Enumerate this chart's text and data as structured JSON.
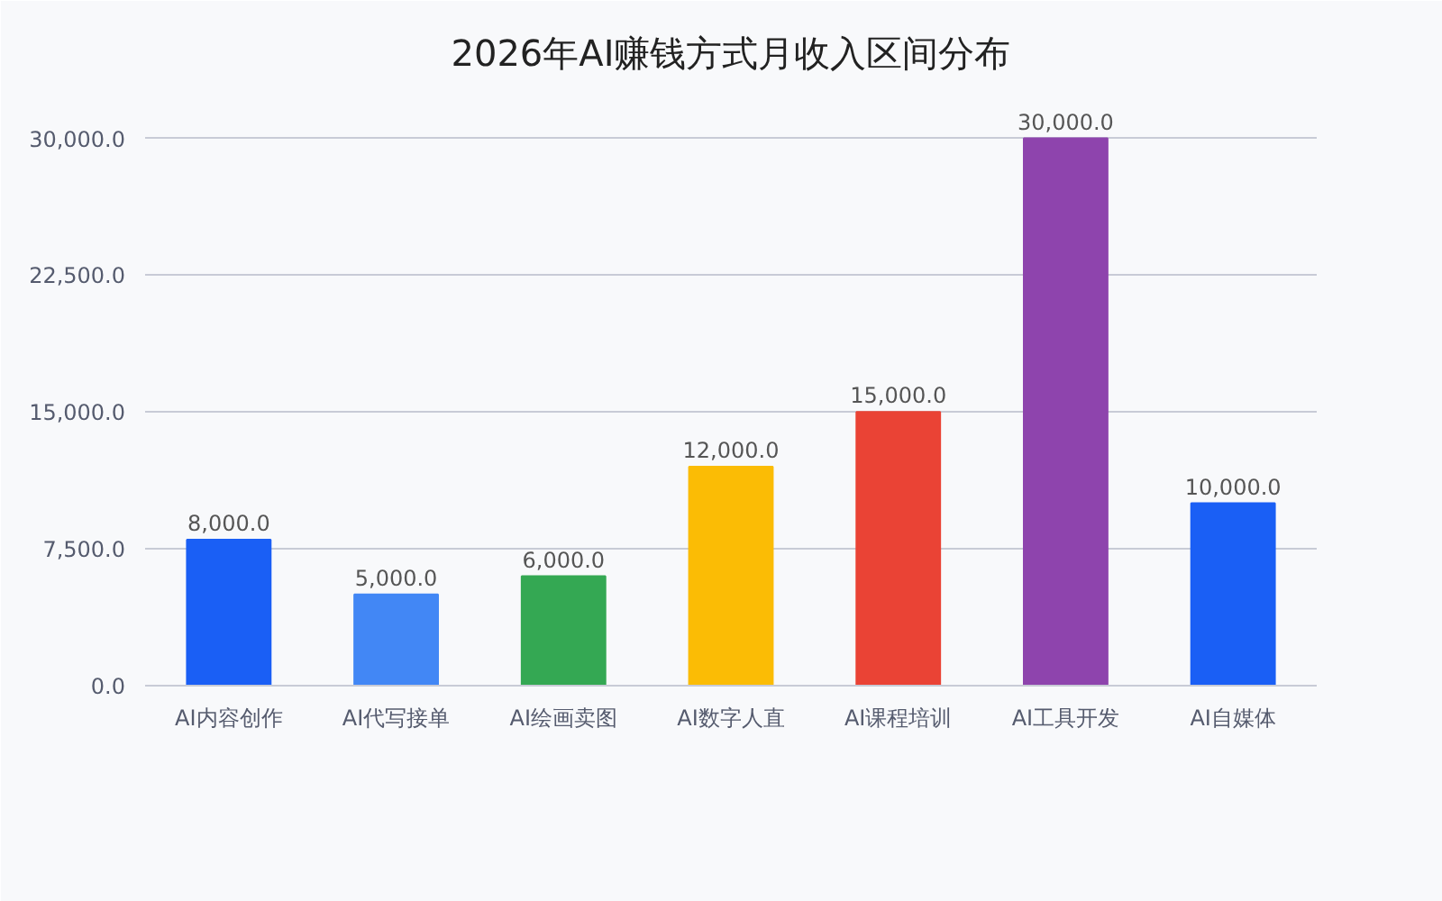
{
  "chart_data": {
    "type": "bar",
    "title": "2026年AI赚钱方式月收入区间分布",
    "categories": [
      "AI内容创作",
      "AI代写接单",
      "AI绘画卖图",
      "AI数字人直",
      "AI课程培训",
      "AI工具开发",
      "AI自媒体"
    ],
    "values": [
      8000,
      5000,
      6000,
      12000,
      15000,
      30000,
      10000
    ],
    "colors": [
      "#1a5ff5",
      "#4287f5",
      "#34a853",
      "#fbbc05",
      "#ea4335",
      "#8e44ad",
      "#1a5ff5"
    ],
    "ylim": [
      0,
      32000
    ],
    "yticks": [
      {
        "value": 0,
        "label": "0.0"
      },
      {
        "value": 7500,
        "label": "7,500.0"
      },
      {
        "value": 15000,
        "label": "15,000.0"
      },
      {
        "value": 22500,
        "label": "22,500.0"
      },
      {
        "value": 30000,
        "label": "30,000.0"
      }
    ],
    "grid": "y",
    "value_labels": [
      "8,000.0",
      "5,000.0",
      "6,000.0",
      "12,000.0",
      "15,000.0",
      "30,000.0",
      "10,000.0"
    ]
  }
}
